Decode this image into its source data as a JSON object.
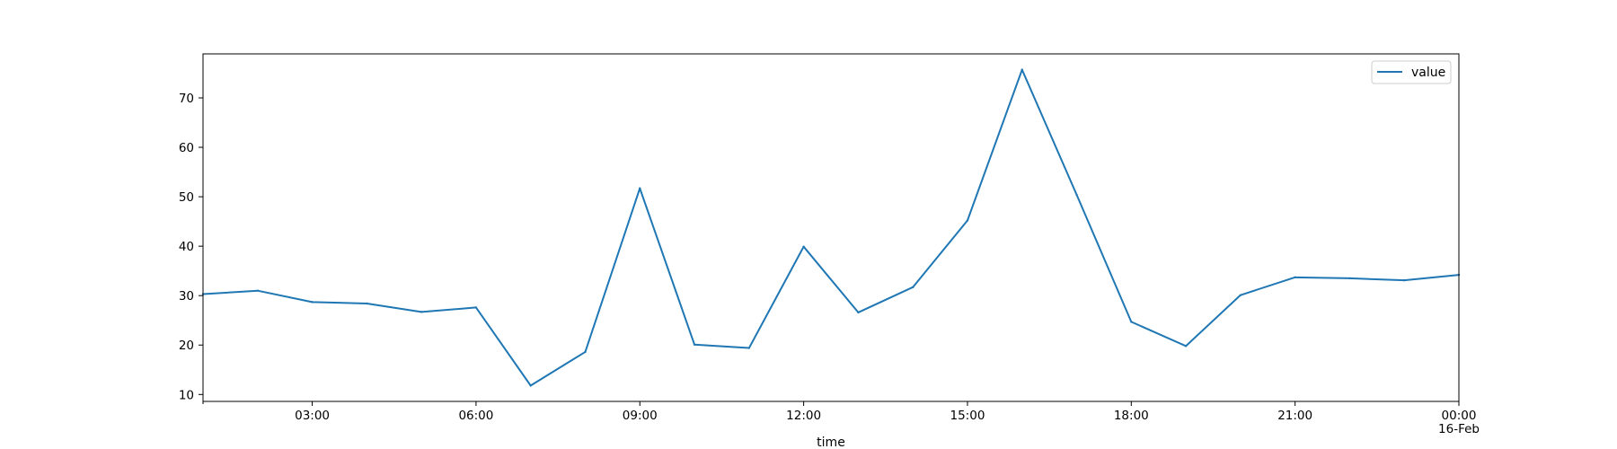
{
  "chart_data": {
    "type": "line",
    "xlabel": "time",
    "ylabel": "",
    "grid": false,
    "legend_position": "top-right",
    "x": [
      "01:00",
      "02:00",
      "03:00",
      "04:00",
      "05:00",
      "06:00",
      "07:00",
      "08:00",
      "09:00",
      "10:00",
      "11:00",
      "12:00",
      "13:00",
      "14:00",
      "15:00",
      "16:00",
      "17:00",
      "18:00",
      "19:00",
      "20:00",
      "21:00",
      "22:00",
      "23:00",
      "00:00"
    ],
    "series": [
      {
        "name": "value",
        "color": "#1f77b4",
        "values": [
          30.3,
          31.0,
          28.7,
          28.4,
          26.7,
          27.6,
          11.8,
          18.6,
          51.7,
          20.1,
          19.4,
          39.9,
          26.6,
          31.7,
          45.2,
          75.7,
          50.4,
          24.7,
          19.8,
          30.1,
          33.7,
          33.5,
          33.1,
          34.2
        ]
      }
    ],
    "xlim": [
      "01:00",
      "00:00"
    ],
    "ylim": [
      8.6,
      78.9
    ],
    "x_ticks": [
      {
        "x": "03:00",
        "label": "03:00"
      },
      {
        "x": "06:00",
        "label": "06:00"
      },
      {
        "x": "09:00",
        "label": "09:00"
      },
      {
        "x": "12:00",
        "label": "12:00"
      },
      {
        "x": "15:00",
        "label": "15:00"
      },
      {
        "x": "18:00",
        "label": "18:00"
      },
      {
        "x": "21:00",
        "label": "21:00"
      },
      {
        "x": "00:00",
        "label": "00:00",
        "sublabel": "16-Feb"
      }
    ],
    "y_ticks": [
      10,
      20,
      30,
      40,
      50,
      60,
      70
    ]
  }
}
